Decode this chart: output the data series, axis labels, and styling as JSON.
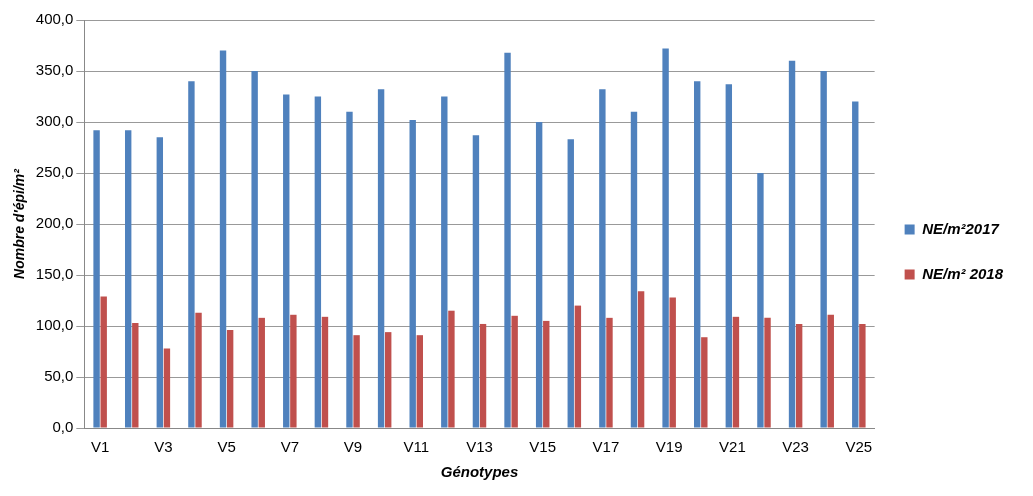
{
  "chart_data": {
    "type": "bar",
    "xlabel": "Génotypes",
    "ylabel": "Nombre d'épi/m²",
    "categories": [
      "V1",
      null,
      "V3",
      null,
      "V5",
      null,
      "V7",
      null,
      "V9",
      null,
      "V11",
      null,
      "V13",
      null,
      "V15",
      null,
      "V17",
      null,
      "V19",
      null,
      "V21",
      null,
      "V23",
      null,
      "V25"
    ],
    "series": [
      {
        "name": "NE/m²2017",
        "color": "#4f81bd",
        "values": [
          292,
          292,
          285,
          340,
          370,
          350,
          327,
          325,
          310,
          332,
          302,
          325,
          287,
          368,
          300,
          283,
          332,
          310,
          372,
          340,
          337,
          250,
          360,
          350,
          320
        ]
      },
      {
        "name": "NE/m² 2018",
        "color": "#c0504d",
        "values": [
          129,
          103,
          78,
          113,
          96,
          108,
          111,
          109,
          91,
          94,
          91,
          115,
          102,
          110,
          105,
          120,
          108,
          134,
          128,
          89,
          109,
          108,
          102,
          111,
          102
        ]
      }
    ],
    "ylim": [
      0,
      400
    ],
    "yticks": [
      {
        "value": 0,
        "label": "0,0"
      },
      {
        "value": 50,
        "label": "50,0"
      },
      {
        "value": 100,
        "label": "100,0"
      },
      {
        "value": 150,
        "label": "150,0"
      },
      {
        "value": 200,
        "label": "200,0"
      },
      {
        "value": 250,
        "label": "250,0"
      },
      {
        "value": 300,
        "label": "300,0"
      },
      {
        "value": 350,
        "label": "350,0"
      },
      {
        "value": 400,
        "label": "400,0"
      }
    ],
    "grid": "y",
    "legend": "right"
  }
}
